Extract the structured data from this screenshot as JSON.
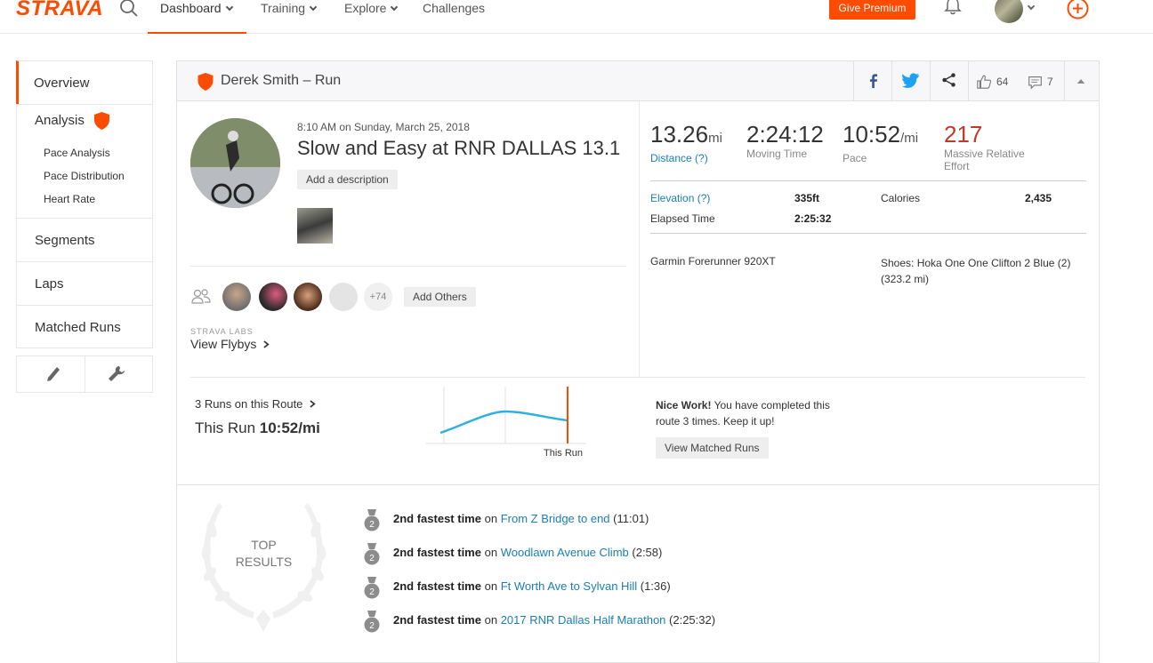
{
  "topnav": {
    "logo": "STRAVA",
    "items": [
      {
        "label": "Dashboard",
        "active": true,
        "has_menu": true
      },
      {
        "label": "Training",
        "active": false,
        "has_menu": true
      },
      {
        "label": "Explore",
        "active": false,
        "has_menu": true
      },
      {
        "label": "Challenges",
        "active": false,
        "has_menu": false
      }
    ],
    "premium_button": "Give Premium",
    "accent_color": "#fc4c02"
  },
  "sidebar": {
    "overview": "Overview",
    "analysis": {
      "label": "Analysis",
      "sub_items": [
        "Pace Analysis",
        "Pace Distribution",
        "Heart Rate"
      ]
    },
    "segments": "Segments",
    "laps": "Laps",
    "matched_runs": "Matched Runs",
    "tools": [
      "pencil-icon",
      "wrench-icon"
    ]
  },
  "header": {
    "title": "Derek Smith – Run",
    "kudos_count": "64",
    "comment_count": "7"
  },
  "activity": {
    "datetime": "8:10 AM on Sunday, March 25, 2018",
    "title": "Slow and Easy at RNR DALLAS 13.1",
    "add_description": "Add a description",
    "more_kudos": "+74",
    "add_others": "Add Others",
    "labs_label": "STRAVA LABS",
    "flyby_link": "View Flybys"
  },
  "stats": {
    "distance": {
      "value": "13.26",
      "unit": "mi",
      "label": "Distance (?)"
    },
    "moving_time": {
      "value": "2:24:12",
      "label": "Moving Time"
    },
    "pace": {
      "value": "10:52",
      "unit": "/mi",
      "label": "Pace"
    },
    "relative_effort": {
      "value": "217",
      "label_line1": "Massive Relative",
      "label_line2": "Effort"
    },
    "elevation_label": "Elevation (?)",
    "elevation_value": "335ft",
    "calories_label": "Calories",
    "calories_value": "2,435",
    "elapsed_label": "Elapsed Time",
    "elapsed_value": "2:25:32",
    "device": "Garmin Forerunner 920XT",
    "shoes_line1": "Shoes: Hoka One One Clifton 2 Blue (2)",
    "shoes_line2": "(323.2 mi)"
  },
  "route": {
    "count_link": "3 Runs on this Route",
    "this_run_label": "This Run",
    "this_run_pace": "10:52/mi",
    "chart_label": "This Run",
    "nice_work_bold": "Nice Work!",
    "nice_work_text": " You have completed this route 3 times. Keep it up!",
    "matched_button": "View Matched Runs"
  },
  "results": {
    "heading_line1": "TOP",
    "heading_line2": "RESULTS",
    "items": [
      {
        "rank": "2",
        "achievement": "2nd fastest time",
        "on": "on",
        "segment": "From Z Bridge to end",
        "time": "(11:01)"
      },
      {
        "rank": "2",
        "achievement": "2nd fastest time",
        "on": "on",
        "segment": "Woodlawn Avenue Climb",
        "time": "(2:58)"
      },
      {
        "rank": "2",
        "achievement": "2nd fastest time",
        "on": "on",
        "segment": "Ft Worth Ave to Sylvan Hill",
        "time": "(1:36)"
      },
      {
        "rank": "2",
        "achievement": "2nd fastest time",
        "on": "on",
        "segment": "2017 RNR Dallas Half Marathon",
        "time": "(2:25:32)"
      }
    ]
  }
}
